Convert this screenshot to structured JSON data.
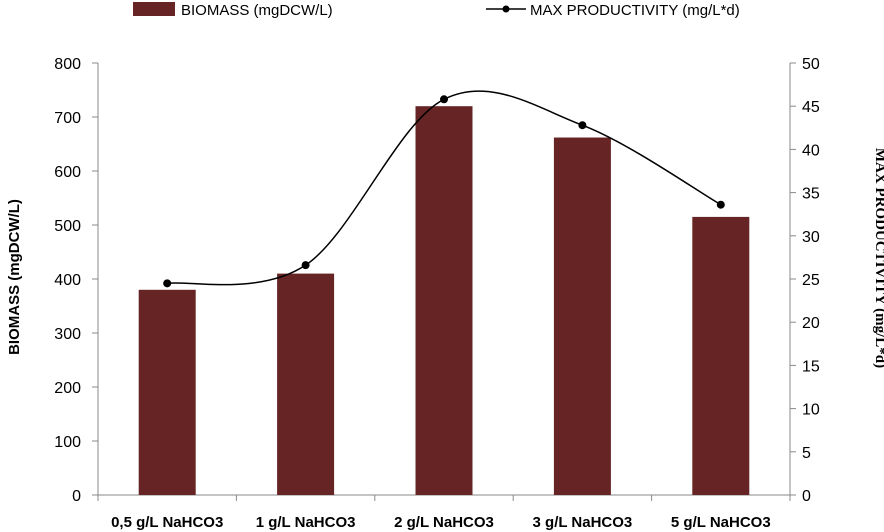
{
  "chart_data": {
    "type": "bar",
    "categories": [
      "0,5 g/L NaHCO3",
      "1 g/L NaHCO3",
      "2 g/L NaHCO3",
      "3 g/L NaHCO3",
      "5 g/L NaHCO3"
    ],
    "series": [
      {
        "name": "BIOMASS (mgDCW/L)",
        "type": "bar",
        "axis": "left",
        "color": "#662424",
        "values": [
          380,
          410,
          720,
          662,
          515
        ]
      },
      {
        "name": "MAX PRODUCTIVITY (mg/L*d)",
        "type": "line",
        "axis": "right",
        "color": "#000000",
        "marker": "circle",
        "smooth": true,
        "values": [
          24.5,
          26.6,
          45.8,
          42.8,
          33.6
        ]
      }
    ],
    "ylabel": "BIOMASS (mgDCW/L)",
    "ylabel_right": "MAX PRODUCTIVITY (mg/L*d)",
    "ylim": [
      0,
      800
    ],
    "yticks": [
      "0",
      "100",
      "200",
      "300",
      "400",
      "500",
      "600",
      "700",
      "800"
    ],
    "ylim_right": [
      0,
      50
    ],
    "yticks_right": [
      "0",
      "5",
      "10",
      "15",
      "20",
      "25",
      "30",
      "35",
      "40",
      "45",
      "50"
    ],
    "grid": false,
    "legend_position": "top"
  }
}
